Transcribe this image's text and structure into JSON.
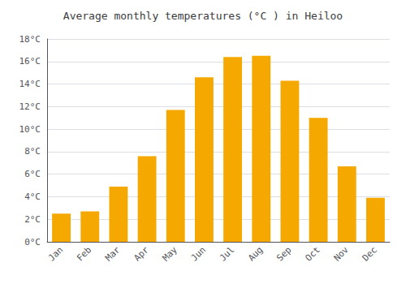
{
  "chart_data": {
    "type": "bar",
    "title": "Average monthly temperatures (°C ) in Heiloo",
    "categories": [
      "Jan",
      "Feb",
      "Mar",
      "Apr",
      "May",
      "Jun",
      "Jul",
      "Aug",
      "Sep",
      "Oct",
      "Nov",
      "Dec"
    ],
    "values": [
      2.5,
      2.7,
      4.9,
      7.6,
      11.7,
      14.6,
      16.4,
      16.5,
      14.3,
      11.0,
      6.7,
      3.9
    ],
    "color": "#F5A800",
    "ylim": [
      0,
      18
    ],
    "yticks": [
      {
        "value": 0,
        "label": "0°C"
      },
      {
        "value": 2,
        "label": "2°C"
      },
      {
        "value": 4,
        "label": "4°C"
      },
      {
        "value": 6,
        "label": "6°C"
      },
      {
        "value": 8,
        "label": "8°C"
      },
      {
        "value": 10,
        "label": "10°C"
      },
      {
        "value": 12,
        "label": "12°C"
      },
      {
        "value": 14,
        "label": "14°C"
      },
      {
        "value": 16,
        "label": "16°C"
      },
      {
        "value": 18,
        "label": "18°C"
      }
    ],
    "grid": true
  }
}
